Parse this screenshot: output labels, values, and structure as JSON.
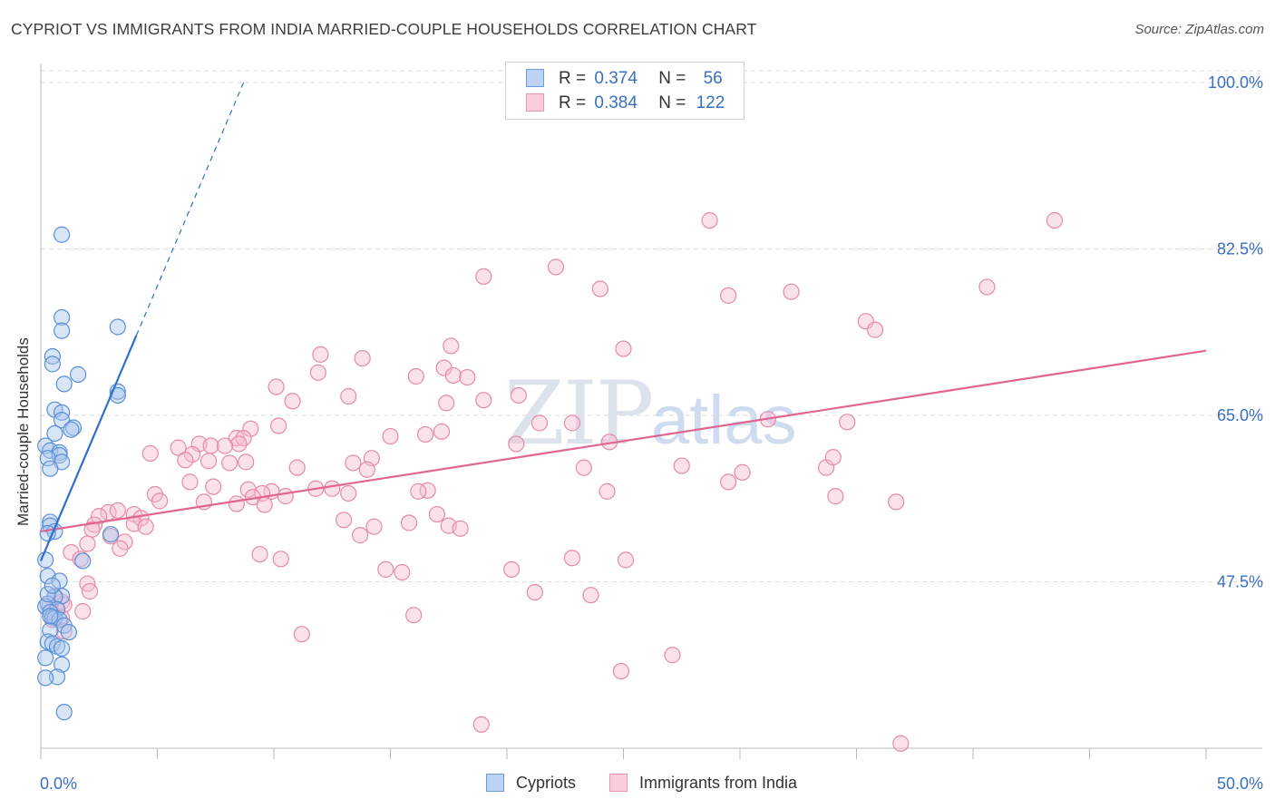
{
  "title": "CYPRIOT VS IMMIGRANTS FROM INDIA MARRIED-COUPLE HOUSEHOLDS CORRELATION CHART",
  "source": "Source: ZipAtlas.com",
  "watermark": {
    "zip": "ZIP",
    "atlas": "atlas"
  },
  "legend_top": [
    {
      "r_label": "R =",
      "r_value": "0.374",
      "n_label": "N =",
      "n_value": "56"
    },
    {
      "r_label": "R =",
      "r_value": "0.384",
      "n_label": "N =",
      "n_value": "122"
    }
  ],
  "legend_bottom": [
    {
      "label": "Cypriots"
    },
    {
      "label": "Immigrants from India"
    }
  ],
  "colors": {
    "blue_fill": "#a9c6ee",
    "blue_stroke": "#5b8fd6",
    "blue_line": "#2e6fcf",
    "pink_fill": "#f6bdd0",
    "pink_stroke": "#e58aa9",
    "pink_line": "#e06590",
    "axis_label": "#3a6fc0",
    "grid": "#dddddd"
  },
  "chart_data": {
    "type": "scatter",
    "title": "CYPRIOT VS IMMIGRANTS FROM INDIA MARRIED-COUPLE HOUSEHOLDS CORRELATION CHART",
    "xlabel": "",
    "ylabel": "Married-couple Households",
    "xlim": [
      0,
      50
    ],
    "ylim": [
      30,
      102
    ],
    "x_tick_labels": [
      "0.0%",
      "50.0%"
    ],
    "y_ticks": [
      47.5,
      65.0,
      82.5,
      100.0
    ],
    "y_tick_labels": [
      "47.5%",
      "65.0%",
      "82.5%",
      "100.0%"
    ],
    "series": [
      {
        "name": "Cypriots",
        "R": 0.374,
        "N": 56,
        "trend": {
          "x1": 0,
          "y1": 49.7,
          "x2": 4.1,
          "y2": 73.4,
          "dash_x2": 8.7,
          "dash_y2": 100.0
        },
        "points": [
          [
            0.9,
            84.0
          ],
          [
            0.9,
            75.3
          ],
          [
            3.3,
            74.3
          ],
          [
            0.9,
            73.9
          ],
          [
            0.5,
            71.2
          ],
          [
            0.5,
            70.4
          ],
          [
            1.6,
            69.3
          ],
          [
            1.0,
            68.3
          ],
          [
            3.3,
            67.5
          ],
          [
            3.3,
            67.1
          ],
          [
            0.6,
            65.6
          ],
          [
            0.9,
            65.3
          ],
          [
            0.9,
            64.5
          ],
          [
            1.4,
            63.7
          ],
          [
            1.3,
            63.5
          ],
          [
            0.6,
            63.1
          ],
          [
            0.2,
            61.8
          ],
          [
            0.4,
            61.3
          ],
          [
            0.8,
            61.1
          ],
          [
            0.8,
            60.8
          ],
          [
            0.3,
            60.5
          ],
          [
            0.9,
            60.1
          ],
          [
            0.4,
            59.4
          ],
          [
            0.4,
            53.8
          ],
          [
            0.4,
            53.4
          ],
          [
            0.6,
            52.8
          ],
          [
            0.3,
            52.6
          ],
          [
            3.0,
            52.5
          ],
          [
            1.8,
            49.7
          ],
          [
            0.2,
            49.8
          ],
          [
            0.3,
            48.1
          ],
          [
            0.8,
            47.6
          ],
          [
            0.9,
            46.0
          ],
          [
            0.6,
            45.9
          ],
          [
            0.3,
            45.2
          ],
          [
            0.2,
            44.9
          ],
          [
            0.7,
            44.6
          ],
          [
            0.4,
            44.3
          ],
          [
            0.5,
            43.8
          ],
          [
            0.6,
            43.7
          ],
          [
            0.8,
            43.5
          ],
          [
            1.0,
            42.9
          ],
          [
            0.4,
            42.4
          ],
          [
            1.2,
            42.2
          ],
          [
            0.3,
            41.2
          ],
          [
            0.5,
            41.0
          ],
          [
            0.7,
            40.7
          ],
          [
            0.9,
            40.5
          ],
          [
            0.2,
            39.5
          ],
          [
            0.9,
            38.8
          ],
          [
            0.7,
            37.5
          ],
          [
            0.2,
            37.4
          ],
          [
            1.0,
            33.8
          ],
          [
            0.4,
            43.9
          ],
          [
            0.3,
            46.2
          ],
          [
            0.5,
            47.1
          ]
        ]
      },
      {
        "name": "Immigrants from India",
        "R": 0.384,
        "N": 122,
        "trend": {
          "x1": 0,
          "y1": 52.8,
          "x2": 50,
          "y2": 71.8
        },
        "points": [
          [
            28.7,
            85.5
          ],
          [
            43.5,
            85.5
          ],
          [
            22.1,
            80.6
          ],
          [
            19.0,
            79.6
          ],
          [
            24.0,
            78.3
          ],
          [
            32.2,
            78.0
          ],
          [
            29.5,
            77.6
          ],
          [
            40.6,
            78.5
          ],
          [
            35.4,
            74.9
          ],
          [
            35.8,
            74.0
          ],
          [
            25.0,
            72.0
          ],
          [
            17.6,
            72.3
          ],
          [
            12.0,
            71.4
          ],
          [
            13.8,
            71.0
          ],
          [
            17.3,
            70.0
          ],
          [
            11.9,
            69.5
          ],
          [
            16.1,
            69.1
          ],
          [
            17.7,
            69.2
          ],
          [
            18.3,
            69.0
          ],
          [
            10.1,
            68.0
          ],
          [
            13.2,
            67.0
          ],
          [
            19.0,
            66.6
          ],
          [
            20.5,
            67.1
          ],
          [
            17.4,
            66.3
          ],
          [
            10.8,
            66.5
          ],
          [
            21.4,
            64.2
          ],
          [
            22.8,
            64.2
          ],
          [
            31.2,
            64.6
          ],
          [
            34.6,
            64.3
          ],
          [
            10.2,
            63.9
          ],
          [
            9.0,
            63.6
          ],
          [
            17.2,
            63.3
          ],
          [
            16.5,
            63.0
          ],
          [
            15.0,
            62.8
          ],
          [
            8.4,
            62.6
          ],
          [
            8.7,
            62.6
          ],
          [
            20.4,
            62.0
          ],
          [
            24.4,
            62.2
          ],
          [
            6.8,
            62.0
          ],
          [
            8.5,
            62.0
          ],
          [
            7.3,
            61.8
          ],
          [
            7.9,
            61.8
          ],
          [
            5.9,
            61.6
          ],
          [
            4.7,
            61.0
          ],
          [
            6.5,
            60.9
          ],
          [
            6.2,
            60.3
          ],
          [
            14.2,
            60.5
          ],
          [
            7.2,
            60.2
          ],
          [
            8.1,
            60.0
          ],
          [
            8.8,
            60.1
          ],
          [
            13.4,
            60.0
          ],
          [
            11.0,
            59.5
          ],
          [
            14.0,
            59.3
          ],
          [
            27.5,
            59.7
          ],
          [
            23.3,
            59.5
          ],
          [
            33.7,
            59.5
          ],
          [
            30.1,
            59.0
          ],
          [
            34.0,
            60.6
          ],
          [
            6.4,
            58.0
          ],
          [
            29.5,
            58.0
          ],
          [
            7.4,
            57.5
          ],
          [
            8.9,
            57.2
          ],
          [
            9.9,
            57.0
          ],
          [
            11.8,
            57.3
          ],
          [
            12.5,
            57.3
          ],
          [
            16.6,
            57.1
          ],
          [
            13.2,
            56.8
          ],
          [
            16.2,
            57.0
          ],
          [
            10.5,
            56.5
          ],
          [
            9.5,
            56.8
          ],
          [
            9.1,
            56.4
          ],
          [
            4.9,
            56.7
          ],
          [
            5.1,
            56.0
          ],
          [
            7.0,
            55.9
          ],
          [
            8.4,
            55.7
          ],
          [
            9.6,
            55.6
          ],
          [
            24.3,
            57.0
          ],
          [
            34.1,
            56.5
          ],
          [
            36.7,
            55.9
          ],
          [
            2.9,
            54.8
          ],
          [
            3.3,
            55.0
          ],
          [
            4.0,
            54.6
          ],
          [
            4.3,
            54.2
          ],
          [
            2.5,
            54.4
          ],
          [
            4.0,
            53.6
          ],
          [
            2.3,
            53.5
          ],
          [
            4.5,
            53.3
          ],
          [
            13.0,
            54.0
          ],
          [
            14.3,
            53.3
          ],
          [
            15.8,
            53.7
          ],
          [
            17.0,
            54.6
          ],
          [
            17.5,
            53.4
          ],
          [
            18.0,
            53.1
          ],
          [
            2.2,
            53.0
          ],
          [
            13.7,
            52.4
          ],
          [
            3.0,
            52.3
          ],
          [
            3.6,
            51.7
          ],
          [
            2.0,
            51.5
          ],
          [
            3.4,
            51.0
          ],
          [
            1.3,
            50.6
          ],
          [
            9.4,
            50.4
          ],
          [
            10.3,
            49.9
          ],
          [
            22.8,
            50.0
          ],
          [
            25.1,
            49.8
          ],
          [
            1.7,
            49.9
          ],
          [
            14.8,
            48.8
          ],
          [
            15.5,
            48.5
          ],
          [
            20.2,
            48.8
          ],
          [
            21.2,
            46.4
          ],
          [
            23.6,
            46.1
          ],
          [
            2.0,
            47.3
          ],
          [
            2.1,
            46.5
          ],
          [
            0.6,
            46.0
          ],
          [
            0.9,
            45.4
          ],
          [
            1.0,
            45.1
          ],
          [
            0.4,
            45.0
          ],
          [
            1.8,
            44.4
          ],
          [
            0.9,
            43.7
          ],
          [
            0.5,
            43.5
          ],
          [
            16.0,
            44.0
          ],
          [
            11.2,
            42.0
          ],
          [
            1.0,
            42.3
          ],
          [
            24.9,
            38.1
          ],
          [
            27.1,
            39.8
          ],
          [
            18.9,
            32.5
          ],
          [
            36.9,
            30.5
          ]
        ]
      }
    ]
  }
}
